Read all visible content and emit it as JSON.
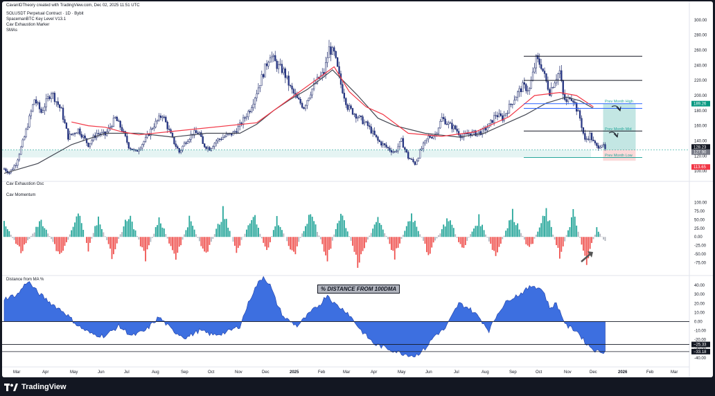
{
  "header": {
    "credit": "CavanIDTheory created with TradingView.com, Dec 02, 2025 11:51 UTC",
    "symbol_line": "SOLUSDT Perpetual Contract · 1D · Bybit",
    "indicators": [
      "SpacemanBTC Key Level V13.1",
      "Cav Exhaustion Marker",
      "SMAs"
    ]
  },
  "panes": {
    "osc_label": "Cav Exhaustion Osc",
    "momentum_label": "Cav Momentum",
    "dist_label": "Distance from MA %"
  },
  "annotation": "% DISTANCE FROM  100DMA",
  "footer": {
    "brand": "TradingView",
    "logo_icon": "tradingview-logo-icon"
  },
  "colors": {
    "bull": "#26a69a",
    "bear": "#ef5350",
    "neutral": "#b2b5be",
    "sma_red": "#f23645",
    "sma_black": "#434651",
    "area": "#3d6fe0",
    "level_high": "#2962ff",
    "teal_zone": "#26a69a"
  },
  "chart_data": [
    {
      "type": "candlestick",
      "symbol": "SOLUSDT Perpetual Contract",
      "interval": "1D",
      "exchange": "Bybit",
      "ylim": [
        90,
        310
      ],
      "y_ticks": [
        100,
        120,
        140,
        160,
        180,
        200,
        220,
        240,
        260,
        280,
        300
      ],
      "y_tick_labels": [
        "100.00",
        "120.00",
        "140.00",
        "160.00",
        "180.00",
        "200.00",
        "220.00",
        "240.00",
        "260.00",
        "280.00",
        "300.00"
      ],
      "x_labels": [
        "Mar",
        "Apr",
        "May",
        "Jun",
        "Jul",
        "Aug",
        "Sep",
        "Oct",
        "Nov",
        "Dec",
        "2025",
        "Feb",
        "Mar",
        "Apr",
        "May",
        "Jun",
        "Jul",
        "Aug",
        "Sep",
        "Oct",
        "Nov",
        "Dec",
        "2026",
        "Feb",
        "Mar"
      ],
      "price_path": [
        [
          0,
          103
        ],
        [
          3,
          98
        ],
        [
          7,
          110
        ],
        [
          12,
          145
        ],
        [
          18,
          195
        ],
        [
          22,
          178
        ],
        [
          28,
          205
        ],
        [
          34,
          180
        ],
        [
          38,
          145
        ],
        [
          44,
          155
        ],
        [
          50,
          135
        ],
        [
          55,
          150
        ],
        [
          60,
          148
        ],
        [
          66,
          170
        ],
        [
          70,
          155
        ],
        [
          74,
          133
        ],
        [
          78,
          125
        ],
        [
          84,
          142
        ],
        [
          88,
          158
        ],
        [
          94,
          175
        ],
        [
          100,
          142
        ],
        [
          104,
          125
        ],
        [
          108,
          140
        ],
        [
          112,
          150
        ],
        [
          116,
          150
        ],
        [
          118,
          135
        ],
        [
          122,
          130
        ],
        [
          126,
          140
        ],
        [
          130,
          145
        ],
        [
          136,
          150
        ],
        [
          140,
          160
        ],
        [
          146,
          182
        ],
        [
          150,
          205
        ],
        [
          154,
          230
        ],
        [
          158,
          255
        ],
        [
          162,
          240
        ],
        [
          166,
          232
        ],
        [
          170,
          210
        ],
        [
          174,
          195
        ],
        [
          178,
          185
        ],
        [
          182,
          205
        ],
        [
          186,
          220
        ],
        [
          190,
          230
        ],
        [
          193,
          262
        ],
        [
          196,
          255
        ],
        [
          200,
          215
        ],
        [
          204,
          185
        ],
        [
          210,
          172
        ],
        [
          216,
          160
        ],
        [
          222,
          140
        ],
        [
          228,
          130
        ],
        [
          232,
          125
        ],
        [
          236,
          140
        ],
        [
          240,
          118
        ],
        [
          244,
          110
        ],
        [
          248,
          130
        ],
        [
          252,
          145
        ],
        [
          256,
          148
        ],
        [
          260,
          170
        ],
        [
          264,
          162
        ],
        [
          268,
          156
        ],
        [
          272,
          145
        ],
        [
          276,
          150
        ],
        [
          280,
          150
        ],
        [
          284,
          152
        ],
        [
          288,
          160
        ],
        [
          292,
          175
        ],
        [
          296,
          170
        ],
        [
          300,
          185
        ],
        [
          304,
          200
        ],
        [
          308,
          212
        ],
        [
          312,
          208
        ],
        [
          316,
          248
        ],
        [
          319,
          240
        ],
        [
          322,
          218
        ],
        [
          324,
          205
        ],
        [
          326,
          215
        ],
        [
          328,
          225
        ],
        [
          330,
          232
        ],
        [
          332,
          200
        ],
        [
          334,
          190
        ],
        [
          336,
          200
        ],
        [
          338,
          195
        ],
        [
          342,
          170
        ],
        [
          345,
          140
        ],
        [
          348,
          148
        ],
        [
          350,
          138
        ],
        [
          352,
          132
        ],
        [
          355,
          136
        ],
        [
          357,
          128
        ]
      ],
      "price_labels": [
        {
          "value": 128.23,
          "text": "128.23",
          "color": "#131722"
        },
        {
          "value": 127.9,
          "text": "127.90",
          "color": "#787b86"
        },
        {
          "value": 113.65,
          "text": "113.65",
          "color": "#f23645"
        },
        {
          "value": 189.26,
          "text": "189.26",
          "color": "#089981"
        }
      ],
      "sma_100": [
        [
          0,
          97
        ],
        [
          20,
          110
        ],
        [
          40,
          135
        ],
        [
          60,
          150
        ],
        [
          80,
          150
        ],
        [
          100,
          145
        ],
        [
          120,
          150
        ],
        [
          140,
          150
        ],
        [
          150,
          162
        ],
        [
          160,
          180
        ],
        [
          170,
          195
        ],
        [
          180,
          208
        ],
        [
          190,
          225
        ],
        [
          195,
          234
        ],
        [
          210,
          200
        ],
        [
          222,
          170
        ],
        [
          232,
          160
        ],
        [
          250,
          150
        ],
        [
          270,
          145
        ],
        [
          285,
          150
        ],
        [
          300,
          165
        ],
        [
          310,
          175
        ],
        [
          322,
          190
        ],
        [
          334,
          198
        ],
        [
          342,
          193
        ],
        [
          350,
          183
        ]
      ],
      "sma_50": [
        [
          40,
          165
        ],
        [
          50,
          160
        ],
        [
          60,
          158
        ],
        [
          70,
          152
        ],
        [
          80,
          148
        ],
        [
          150,
          164
        ],
        [
          196,
          238
        ],
        [
          205,
          205
        ],
        [
          215,
          185
        ],
        [
          225,
          175
        ],
        [
          240,
          150
        ],
        [
          260,
          146
        ],
        [
          280,
          152
        ],
        [
          300,
          172
        ],
        [
          315,
          200
        ],
        [
          330,
          204
        ],
        [
          340,
          200
        ],
        [
          350,
          185
        ]
      ],
      "key_levels": [
        {
          "value": 252,
          "label": ""
        },
        {
          "value": 220,
          "label": ""
        },
        {
          "value": 189.26,
          "label": "Prev Month High"
        },
        {
          "value": 183,
          "label": ""
        },
        {
          "value": 153,
          "label": "Prev Month Mid"
        },
        {
          "value": 118,
          "label": "Prev Month Low"
        }
      ]
    },
    {
      "type": "bar",
      "name": "Cav Momentum",
      "ylim": [
        -100,
        115
      ],
      "y_ticks": [
        -75,
        -50,
        -25,
        0,
        25,
        50,
        75,
        100
      ],
      "y_tick_labels": [
        "-75.00",
        "-50.00",
        "-25.00",
        "0.00",
        "25.00",
        "50.00",
        "75.00",
        "100.00"
      ]
    },
    {
      "type": "area",
      "name": "Distance from MA %",
      "ylim": [
        -44,
        50
      ],
      "y_ticks": [
        -40,
        -30,
        -20,
        -10,
        0,
        10,
        20,
        30,
        40
      ],
      "y_tick_labels": [
        "-40.00",
        "-30.00",
        "-20.00",
        "-10.00",
        "0.00",
        "10.00",
        "20.00",
        "30.00",
        "40.00"
      ],
      "value_labels": [
        {
          "value": -25.33,
          "text": "−25.33"
        },
        {
          "value": -33.18,
          "text": "−33.18"
        }
      ],
      "series_path": [
        [
          0,
          25
        ],
        [
          8,
          30
        ],
        [
          14,
          45
        ],
        [
          20,
          32
        ],
        [
          28,
          20
        ],
        [
          36,
          10
        ],
        [
          44,
          -5
        ],
        [
          52,
          -14
        ],
        [
          60,
          -16
        ],
        [
          68,
          -5
        ],
        [
          76,
          -16
        ],
        [
          84,
          -10
        ],
        [
          92,
          5
        ],
        [
          100,
          -10
        ],
        [
          108,
          -18
        ],
        [
          116,
          -10
        ],
        [
          124,
          -15
        ],
        [
          132,
          -12
        ],
        [
          140,
          -5
        ],
        [
          146,
          25
        ],
        [
          150,
          40
        ],
        [
          154,
          50
        ],
        [
          158,
          40
        ],
        [
          162,
          20
        ],
        [
          166,
          5
        ],
        [
          174,
          -5
        ],
        [
          182,
          10
        ],
        [
          188,
          20
        ],
        [
          192,
          30
        ],
        [
          196,
          20
        ],
        [
          204,
          10
        ],
        [
          212,
          -10
        ],
        [
          220,
          -25
        ],
        [
          228,
          -30
        ],
        [
          236,
          -35
        ],
        [
          244,
          -38
        ],
        [
          250,
          -30
        ],
        [
          256,
          -15
        ],
        [
          262,
          -8
        ],
        [
          270,
          20
        ],
        [
          276,
          15
        ],
        [
          282,
          5
        ],
        [
          288,
          -10
        ],
        [
          294,
          12
        ],
        [
          300,
          25
        ],
        [
          306,
          30
        ],
        [
          314,
          40
        ],
        [
          320,
          35
        ],
        [
          324,
          15
        ],
        [
          328,
          20
        ],
        [
          334,
          -5
        ],
        [
          340,
          -10
        ],
        [
          346,
          -25
        ],
        [
          352,
          -33
        ],
        [
          357,
          -33
        ]
      ]
    }
  ]
}
